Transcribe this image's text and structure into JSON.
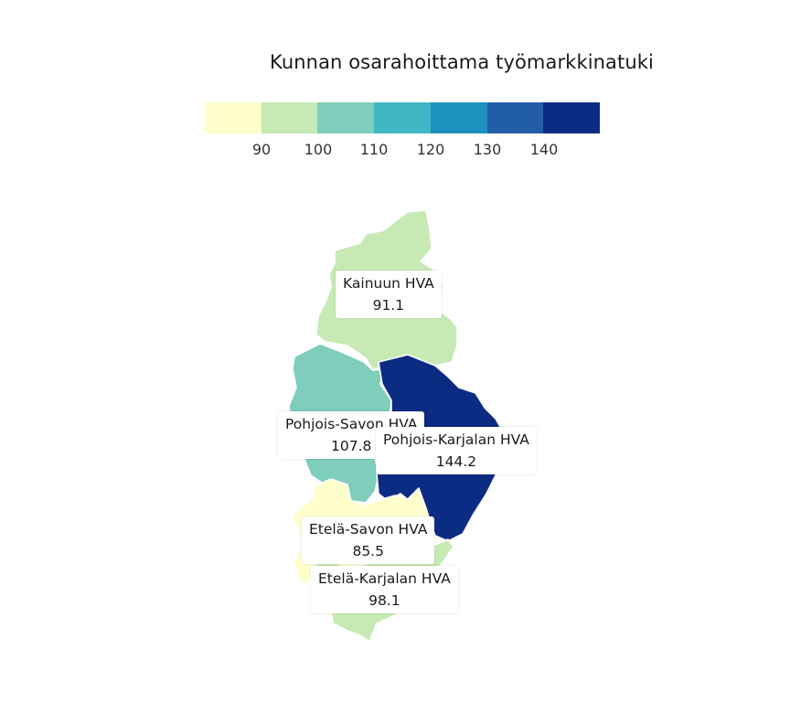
{
  "map": {
    "title": "Kunnan osarahoittama työmarkkinatuki",
    "legend": {
      "colors": [
        "#ffffcc",
        "#c7e9b4",
        "#7fcdbb",
        "#41b6c4",
        "#1d91c0",
        "#225ea8",
        "#0c2c84"
      ],
      "ticks": [
        "90",
        "100",
        "110",
        "120",
        "130",
        "140"
      ]
    },
    "regions": [
      {
        "name": "Kainuun HVA",
        "value": "91.1",
        "color": "#c7e9b4"
      },
      {
        "name": "Pohjois-Savon HVA",
        "value": "107.8",
        "color": "#7fcdbb"
      },
      {
        "name": "Pohjois-Karjalan HVA",
        "value": "144.2",
        "color": "#0c2c84"
      },
      {
        "name": "Etelä-Savon HVA",
        "value": "85.5",
        "color": "#ffffcc"
      },
      {
        "name": "Etelä-Karjalan HVA",
        "value": "98.1",
        "color": "#c7e9b4"
      }
    ]
  }
}
